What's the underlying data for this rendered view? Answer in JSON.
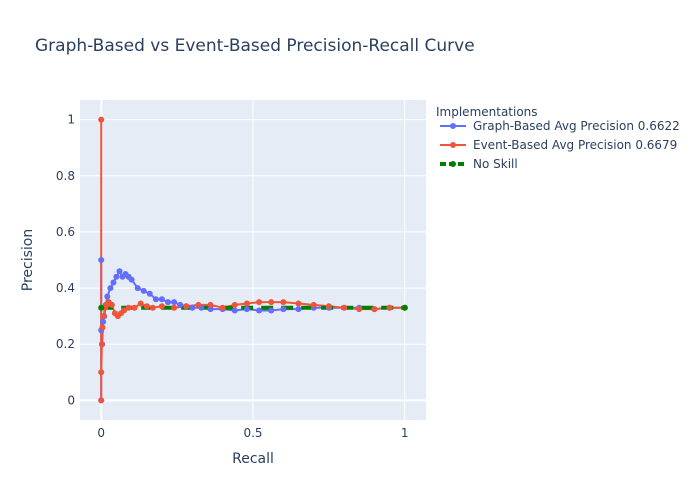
{
  "chart_data": {
    "type": "line",
    "title": "Graph-Based vs Event-Based Precision-Recall Curve",
    "xlabel": "Recall",
    "ylabel": "Precision",
    "xlim": [
      -0.07,
      1.07
    ],
    "ylim": [
      -0.07,
      1.07
    ],
    "x_ticks": [
      0,
      0.5,
      1
    ],
    "x_tick_labels": [
      "0",
      "0.5",
      "1"
    ],
    "y_ticks": [
      0,
      0.2,
      0.4,
      0.6,
      0.8,
      1
    ],
    "y_tick_labels": [
      "0",
      "0.2",
      "0.4",
      "0.6",
      "0.8",
      "1"
    ],
    "grid": true,
    "legend_title": "Implementations",
    "legend_position": "right",
    "series": [
      {
        "name": "Graph-Based Avg Precision 0.6622",
        "color": "#636efa",
        "dash": "solid",
        "x": [
          0,
          0,
          0,
          0.003,
          0.006,
          0.01,
          0.015,
          0.02,
          0.03,
          0.04,
          0.05,
          0.06,
          0.07,
          0.08,
          0.09,
          0.1,
          0.12,
          0.14,
          0.16,
          0.18,
          0.2,
          0.22,
          0.24,
          0.26,
          0.28,
          0.3,
          0.33,
          0.36,
          0.4,
          0.44,
          0.48,
          0.52,
          0.56,
          0.6,
          0.65,
          0.7,
          0.75,
          0.8,
          0.85,
          0.9,
          0.95,
          1.0
        ],
        "y": [
          0,
          0.5,
          0.25,
          0.2,
          0.28,
          0.3,
          0.34,
          0.37,
          0.4,
          0.42,
          0.44,
          0.46,
          0.44,
          0.45,
          0.44,
          0.43,
          0.4,
          0.39,
          0.38,
          0.36,
          0.36,
          0.35,
          0.35,
          0.34,
          0.335,
          0.33,
          0.33,
          0.325,
          0.325,
          0.32,
          0.325,
          0.32,
          0.32,
          0.325,
          0.325,
          0.33,
          0.33,
          0.33,
          0.33,
          0.325,
          0.33,
          0.33
        ]
      },
      {
        "name": "Event-Based Avg Precision 0.6679",
        "color": "#ef553b",
        "dash": "solid",
        "x": [
          0,
          0,
          0,
          0.002,
          0.004,
          0.008,
          0.012,
          0.018,
          0.025,
          0.035,
          0.045,
          0.055,
          0.065,
          0.075,
          0.09,
          0.11,
          0.13,
          0.15,
          0.17,
          0.2,
          0.24,
          0.28,
          0.32,
          0.36,
          0.4,
          0.44,
          0.48,
          0.52,
          0.56,
          0.6,
          0.65,
          0.7,
          0.75,
          0.8,
          0.85,
          0.9,
          0.95,
          1.0
        ],
        "y": [
          0,
          1,
          0.1,
          0.2,
          0.26,
          0.3,
          0.33,
          0.34,
          0.35,
          0.34,
          0.31,
          0.3,
          0.31,
          0.32,
          0.33,
          0.33,
          0.345,
          0.335,
          0.33,
          0.335,
          0.33,
          0.335,
          0.34,
          0.34,
          0.33,
          0.34,
          0.345,
          0.35,
          0.35,
          0.35,
          0.345,
          0.34,
          0.335,
          0.33,
          0.325,
          0.325,
          0.33,
          0.33
        ]
      },
      {
        "name": "No Skill",
        "color": "#008000",
        "dash": "dash",
        "x": [
          0,
          1
        ],
        "y": [
          0.33,
          0.33
        ]
      }
    ]
  }
}
